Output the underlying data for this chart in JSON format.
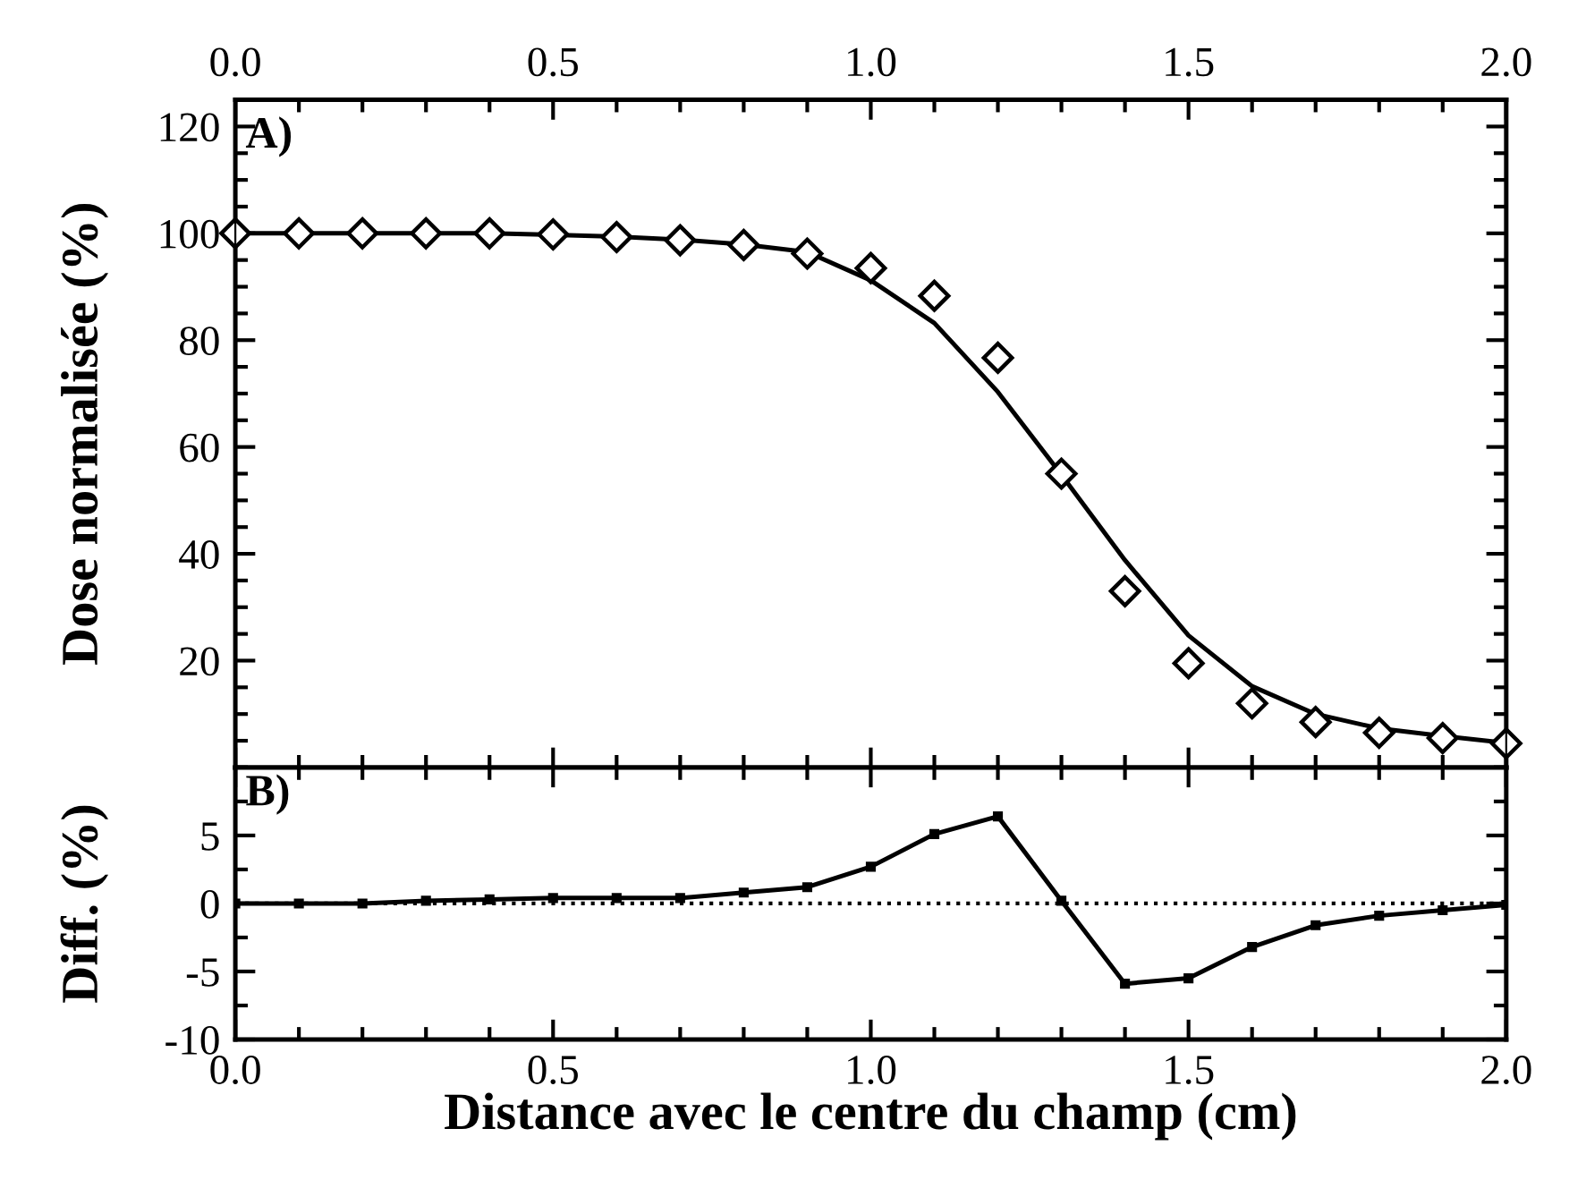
{
  "chart_data": [
    {
      "type": "line",
      "ylabel": "Dose normalisée (%)",
      "annotations": [
        "A)"
      ],
      "x": [
        0.0,
        0.1,
        0.2,
        0.3,
        0.4,
        0.5,
        0.6,
        0.7,
        0.8,
        0.9,
        1.0,
        1.1,
        1.2,
        1.3,
        1.4,
        1.5,
        1.6,
        1.7,
        1.8,
        1.9,
        2.0
      ],
      "series": [
        {
          "type": "scatter",
          "marker": "diamond",
          "color": "#000000",
          "values": [
            100,
            100,
            100,
            100,
            100,
            99.8,
            99.3,
            98.7,
            97.8,
            96.2,
            93.5,
            88.3,
            76.7,
            55,
            33,
            19.5,
            12,
            8.5,
            6.5,
            5.5,
            4.5
          ]
        },
        {
          "marker": "none",
          "line_style": "solid",
          "color": "#000000",
          "values": [
            100,
            100,
            100,
            100,
            100,
            99.7,
            99.4,
            98.8,
            97.9,
            96.5,
            91.2,
            83.2,
            70.3,
            54.8,
            38.8,
            24.7,
            15.2,
            10,
            7.3,
            5.9,
            4.6
          ]
        }
      ],
      "xlim": [
        0,
        2
      ],
      "xticks": [
        0.0,
        0.5,
        1.0,
        1.5,
        2.0
      ],
      "x2lim": [
        0,
        2
      ],
      "x2ticks": [
        {
          "value": 0,
          "label": "0.0"
        },
        {
          "value": 0.5,
          "label": "0.5"
        },
        {
          "value": 1,
          "label": "1.0"
        },
        {
          "value": 1.5,
          "label": "1.5"
        },
        {
          "value": 2,
          "label": "2.0"
        }
      ],
      "ylim": [
        0,
        125
      ],
      "yticks": [
        20,
        40,
        60,
        80,
        100,
        120
      ],
      "tick_labels": "y",
      "grid": false,
      "legend": false
    },
    {
      "type": "line",
      "xlabel": "Distance avec le centre du champ (cm)",
      "ylabel": "Diff. (%)",
      "annotations": [
        "B)"
      ],
      "x": [
        0.0,
        0.1,
        0.2,
        0.3,
        0.4,
        0.5,
        0.6,
        0.7,
        0.8,
        0.9,
        1.0,
        1.1,
        1.2,
        1.3,
        1.4,
        1.5,
        1.6,
        1.7,
        1.8,
        1.9,
        2.0
      ],
      "series": [
        {
          "marker": "square",
          "line_style": "solid",
          "color": "#000000",
          "values": [
            0,
            0,
            0,
            0.2,
            0.3,
            0.4,
            0.4,
            0.4,
            0.8,
            1.2,
            2.7,
            5.1,
            6.4,
            0.2,
            -5.9,
            -5.5,
            -3.2,
            -1.6,
            -0.9,
            -0.5,
            -0.1
          ]
        }
      ],
      "ref_lines": [
        {
          "axis": "y",
          "value": 0,
          "color": "#000000",
          "line_style": "dotted"
        }
      ],
      "xlim": [
        0,
        2
      ],
      "xticks": [
        {
          "value": 0,
          "label": "0.0"
        },
        {
          "value": 0.5,
          "label": "0.5"
        },
        {
          "value": 1,
          "label": "1.0"
        },
        {
          "value": 1.5,
          "label": "1.5"
        },
        {
          "value": 2,
          "label": "2.0"
        }
      ],
      "ylim": [
        -10,
        10
      ],
      "yticks": [
        -10,
        -5,
        0,
        5
      ],
      "grid": false,
      "legend": false
    }
  ]
}
